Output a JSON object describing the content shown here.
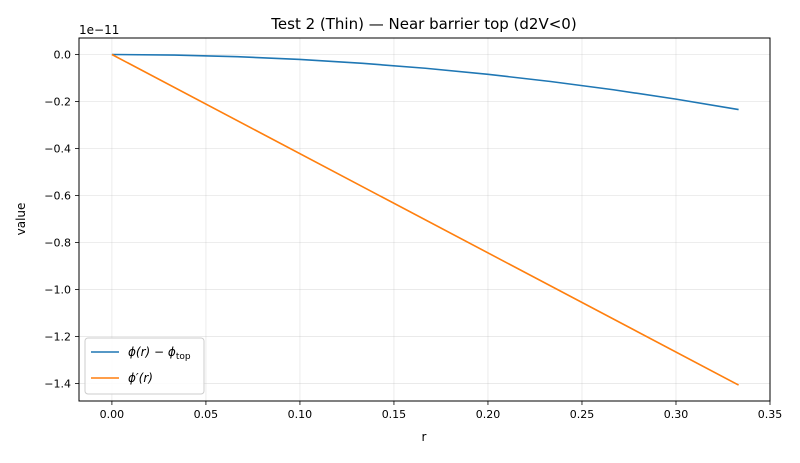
{
  "chart_data": {
    "type": "line",
    "title": "Test 2 (Thin) — Near barrier top (d2V<0)",
    "xlabel": "r",
    "ylabel": "value",
    "y_offset_label": "1e−11",
    "xlim": [
      -0.0175,
      0.35
    ],
    "ylim": [
      -1.4747,
      0.0702
    ],
    "y_scale_factor": 1e-11,
    "x_ticks": [
      0.0,
      0.05,
      0.1,
      0.15,
      0.2,
      0.25,
      0.3,
      0.35
    ],
    "x_tick_labels": [
      "0.00",
      "0.05",
      "0.10",
      "0.15",
      "0.20",
      "0.25",
      "0.30",
      "0.35"
    ],
    "y_ticks": [
      0.0,
      -0.2,
      -0.4,
      -0.6,
      -0.8,
      -1.0,
      -1.2,
      -1.4
    ],
    "y_tick_labels": [
      "0.0",
      "−0.2",
      "−0.4",
      "−0.6",
      "−0.8",
      "−1.0",
      "−1.2",
      "−1.4"
    ],
    "grid": true,
    "legend_position": "lower-left",
    "series": [
      {
        "name": "ϕ(r) − ϕtop",
        "legend_main": "ϕ(r) − ϕ",
        "legend_sub": "top",
        "color": "#1f77b4",
        "x": [
          0.0,
          0.0333,
          0.0667,
          0.1,
          0.1333,
          0.1667,
          0.2,
          0.2333,
          0.2667,
          0.3,
          0.3333
        ],
        "y": [
          0.0,
          -0.0023,
          -0.0094,
          -0.0211,
          -0.0375,
          -0.0586,
          -0.0844,
          -0.1149,
          -0.1501,
          -0.1899,
          -0.2345
        ]
      },
      {
        "name": "ϕ′(r)",
        "legend_main": "ϕ′(r)",
        "legend_sub": "",
        "color": "#ff7f0e",
        "x": [
          0.0,
          0.3333
        ],
        "y": [
          0.0,
          -1.407
        ]
      }
    ]
  }
}
